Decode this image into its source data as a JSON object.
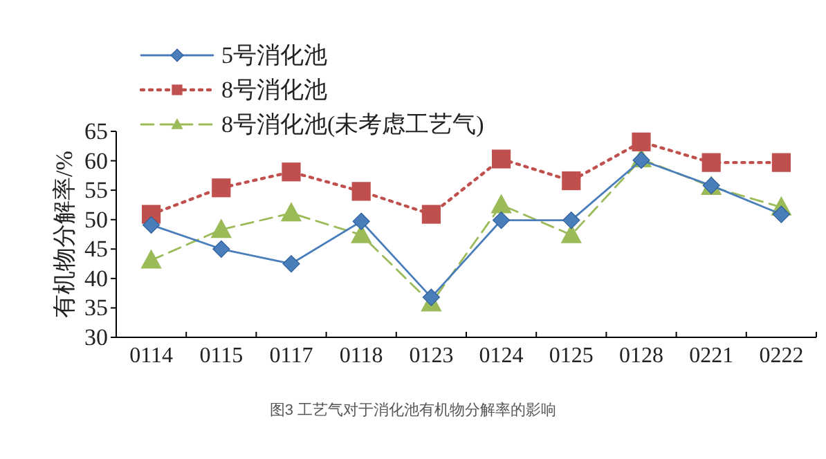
{
  "chart_data": {
    "type": "line",
    "ylabel": "有机物分解率/%",
    "categories": [
      "0114",
      "0115",
      "0117",
      "0118",
      "0123",
      "0124",
      "0125",
      "0128",
      "0221",
      "0222"
    ],
    "ylim": [
      30,
      65
    ],
    "yticks": [
      30,
      35,
      40,
      45,
      50,
      55,
      60,
      65
    ],
    "grid": false,
    "legend": "top left",
    "series": [
      {
        "name": "5号消化池",
        "color": "#4a7ebb",
        "marker": "diamond",
        "line_style": "solid",
        "values": [
          49.1,
          45.0,
          42.5,
          49.7,
          36.8,
          49.9,
          49.9,
          60.1,
          55.8,
          50.9
        ]
      },
      {
        "name": "8号消化池",
        "color": "#c0504d",
        "marker": "square",
        "line_style": "dotted",
        "values": [
          50.9,
          55.4,
          58.1,
          54.8,
          50.9,
          60.3,
          56.6,
          63.2,
          59.7,
          59.7
        ]
      },
      {
        "name": "8号消化池(未考虑工艺气)",
        "color": "#9bbb59",
        "marker": "triangle",
        "line_style": "dashed",
        "values": [
          43.1,
          48.3,
          51.1,
          47.4,
          35.8,
          52.5,
          47.4,
          60.3,
          55.6,
          52.1
        ]
      }
    ],
    "annotations": [
      "图3 工艺气对于消化池有机物分解率的影响"
    ]
  }
}
